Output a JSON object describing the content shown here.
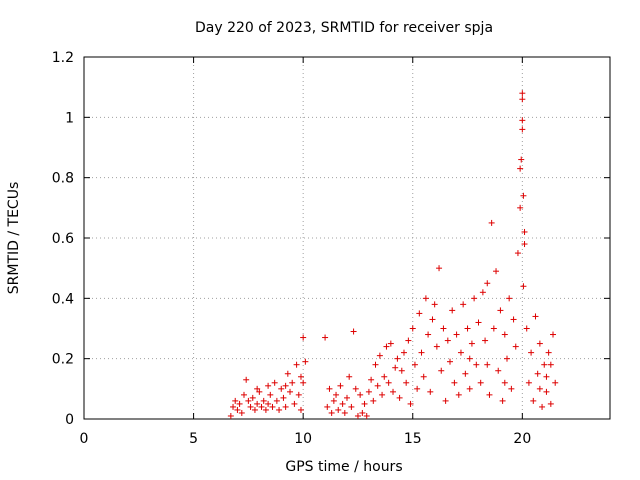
{
  "chart_data": {
    "type": "scatter",
    "title": "Day 220 of 2023, SRMTID for receiver spja",
    "xlabel": "GPS time / hours",
    "ylabel": "SRMTID / TECUs",
    "xlim": [
      0,
      24
    ],
    "ylim": [
      0,
      1.2
    ],
    "x_ticks": [
      0,
      5,
      10,
      15,
      20
    ],
    "x_tick_labels": [
      "0",
      "5",
      "10",
      "15",
      "20"
    ],
    "y_ticks": [
      0,
      0.2,
      0.4,
      0.6,
      0.8,
      1,
      1.2
    ],
    "y_tick_labels": [
      "0",
      "0.2",
      "0.4",
      "0.6",
      "0.8",
      "1",
      "1.2"
    ],
    "grid": true,
    "marker": "+",
    "series": [
      {
        "name": "SRMTID",
        "color": "#dd0000",
        "points": [
          [
            6.7,
            0.01
          ],
          [
            6.8,
            0.04
          ],
          [
            6.9,
            0.06
          ],
          [
            7.0,
            0.03
          ],
          [
            7.1,
            0.05
          ],
          [
            7.2,
            0.02
          ],
          [
            7.3,
            0.08
          ],
          [
            7.4,
            0.13
          ],
          [
            7.5,
            0.06
          ],
          [
            7.6,
            0.04
          ],
          [
            7.7,
            0.07
          ],
          [
            7.8,
            0.03
          ],
          [
            7.9,
            0.05
          ],
          [
            8.0,
            0.09
          ],
          [
            8.1,
            0.04
          ],
          [
            8.2,
            0.06
          ],
          [
            8.3,
            0.03
          ],
          [
            8.4,
            0.05
          ],
          [
            8.5,
            0.08
          ],
          [
            8.6,
            0.04
          ],
          [
            8.7,
            0.12
          ],
          [
            8.8,
            0.06
          ],
          [
            8.9,
            0.03
          ],
          [
            9.0,
            0.1
          ],
          [
            9.1,
            0.07
          ],
          [
            9.2,
            0.04
          ],
          [
            9.3,
            0.15
          ],
          [
            9.4,
            0.09
          ],
          [
            9.5,
            0.12
          ],
          [
            9.6,
            0.05
          ],
          [
            9.7,
            0.18
          ],
          [
            9.8,
            0.08
          ],
          [
            9.9,
            0.03
          ],
          [
            10.0,
            0.27
          ],
          [
            10.1,
            0.19
          ],
          [
            10.0,
            0.12
          ],
          [
            9.9,
            0.14
          ],
          [
            7.9,
            0.1
          ],
          [
            8.4,
            0.11
          ],
          [
            9.2,
            0.11
          ],
          [
            11.0,
            0.27
          ],
          [
            11.1,
            0.04
          ],
          [
            11.2,
            0.1
          ],
          [
            11.3,
            0.02
          ],
          [
            11.4,
            0.06
          ],
          [
            11.5,
            0.08
          ],
          [
            11.6,
            0.03
          ],
          [
            11.7,
            0.11
          ],
          [
            11.8,
            0.05
          ],
          [
            11.9,
            0.02
          ],
          [
            12.0,
            0.07
          ],
          [
            12.1,
            0.14
          ],
          [
            12.2,
            0.04
          ],
          [
            12.3,
            0.29
          ],
          [
            12.4,
            0.1
          ],
          [
            12.5,
            0.01
          ],
          [
            12.6,
            0.08
          ],
          [
            12.7,
            0.02
          ],
          [
            12.8,
            0.05
          ],
          [
            12.9,
            0.01
          ],
          [
            13.0,
            0.09
          ],
          [
            13.1,
            0.13
          ],
          [
            13.2,
            0.06
          ],
          [
            13.3,
            0.18
          ],
          [
            13.4,
            0.11
          ],
          [
            13.5,
            0.21
          ],
          [
            13.6,
            0.08
          ],
          [
            13.7,
            0.14
          ],
          [
            13.8,
            0.24
          ],
          [
            13.9,
            0.12
          ],
          [
            14.0,
            0.25
          ],
          [
            14.1,
            0.09
          ],
          [
            14.2,
            0.17
          ],
          [
            14.3,
            0.2
          ],
          [
            14.4,
            0.07
          ],
          [
            14.5,
            0.16
          ],
          [
            14.6,
            0.22
          ],
          [
            14.7,
            0.12
          ],
          [
            14.8,
            0.26
          ],
          [
            14.9,
            0.05
          ],
          [
            15.0,
            0.3
          ],
          [
            15.1,
            0.18
          ],
          [
            15.2,
            0.1
          ],
          [
            15.3,
            0.35
          ],
          [
            15.4,
            0.22
          ],
          [
            15.5,
            0.14
          ],
          [
            15.6,
            0.4
          ],
          [
            15.7,
            0.28
          ],
          [
            15.8,
            0.09
          ],
          [
            15.9,
            0.33
          ],
          [
            16.0,
            0.38
          ],
          [
            16.1,
            0.24
          ],
          [
            16.2,
            0.5
          ],
          [
            16.3,
            0.16
          ],
          [
            16.4,
            0.3
          ],
          [
            16.5,
            0.06
          ],
          [
            16.6,
            0.26
          ],
          [
            16.7,
            0.19
          ],
          [
            16.8,
            0.36
          ],
          [
            16.9,
            0.12
          ],
          [
            17.0,
            0.28
          ],
          [
            17.1,
            0.08
          ],
          [
            17.2,
            0.22
          ],
          [
            17.3,
            0.38
          ],
          [
            17.4,
            0.15
          ],
          [
            17.5,
            0.3
          ],
          [
            17.6,
            0.1
          ],
          [
            17.7,
            0.25
          ],
          [
            17.8,
            0.4
          ],
          [
            17.9,
            0.18
          ],
          [
            18.0,
            0.32
          ],
          [
            18.1,
            0.12
          ],
          [
            18.2,
            0.42
          ],
          [
            18.3,
            0.26
          ],
          [
            18.4,
            0.45
          ],
          [
            18.5,
            0.08
          ],
          [
            18.6,
            0.65
          ],
          [
            18.7,
            0.3
          ],
          [
            18.8,
            0.49
          ],
          [
            18.9,
            0.16
          ],
          [
            19.0,
            0.36
          ],
          [
            19.1,
            0.06
          ],
          [
            19.2,
            0.28
          ],
          [
            19.3,
            0.2
          ],
          [
            19.4,
            0.4
          ],
          [
            19.5,
            0.1
          ],
          [
            19.6,
            0.33
          ],
          [
            19.7,
            0.24
          ],
          [
            19.8,
            0.55
          ],
          [
            19.9,
            0.7
          ],
          [
            19.95,
            0.86
          ],
          [
            20.0,
            1.08
          ],
          [
            20.0,
            1.06
          ],
          [
            20.0,
            0.99
          ],
          [
            20.05,
            0.74
          ],
          [
            20.1,
            0.62
          ],
          [
            20.1,
            0.58
          ],
          [
            20.0,
            0.96
          ],
          [
            19.9,
            0.83
          ],
          [
            20.05,
            0.44
          ],
          [
            20.2,
            0.3
          ],
          [
            20.3,
            0.12
          ],
          [
            20.4,
            0.22
          ],
          [
            20.5,
            0.06
          ],
          [
            20.6,
            0.34
          ],
          [
            20.7,
            0.15
          ],
          [
            20.8,
            0.25
          ],
          [
            20.9,
            0.04
          ],
          [
            21.0,
            0.18
          ],
          [
            21.1,
            0.09
          ],
          [
            21.2,
            0.22
          ],
          [
            21.3,
            0.05
          ],
          [
            21.4,
            0.28
          ],
          [
            21.5,
            0.12
          ],
          [
            21.3,
            0.18
          ],
          [
            21.1,
            0.14
          ],
          [
            20.8,
            0.1
          ],
          [
            19.2,
            0.12
          ],
          [
            18.4,
            0.18
          ],
          [
            17.6,
            0.2
          ]
        ]
      }
    ]
  }
}
